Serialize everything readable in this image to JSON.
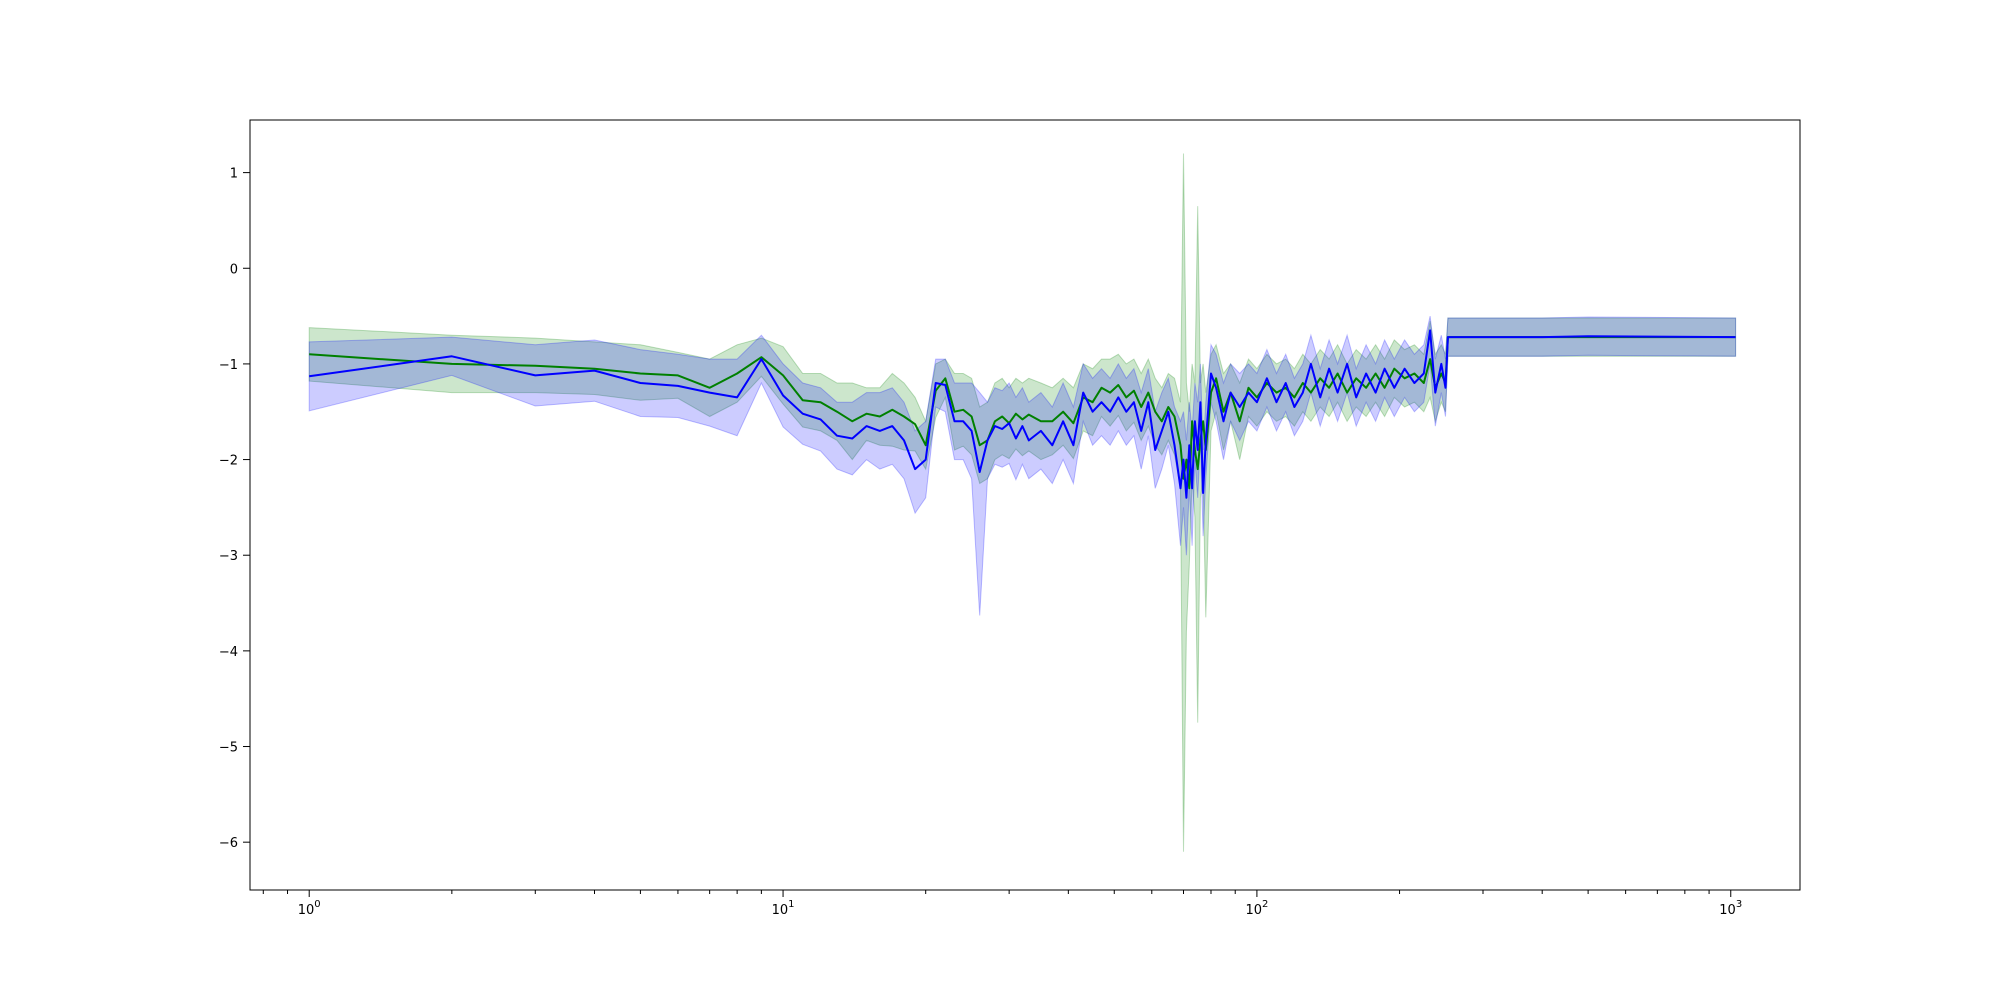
{
  "chart_data": {
    "type": "line",
    "title": "",
    "xlabel": "",
    "ylabel": "",
    "xscale": "log",
    "xlim": [
      0.75,
      1400
    ],
    "ylim": [
      -6.5,
      1.55
    ],
    "grid": false,
    "legend": "none",
    "x_ticks": [
      {
        "value": 1,
        "base": "10",
        "exp": "0"
      },
      {
        "value": 10,
        "base": "10",
        "exp": "1"
      },
      {
        "value": 100,
        "base": "10",
        "exp": "2"
      },
      {
        "value": 1000,
        "base": "10",
        "exp": "3"
      }
    ],
    "y_ticks": [
      {
        "value": 1,
        "label": "1"
      },
      {
        "value": 0,
        "label": "0"
      },
      {
        "value": -1,
        "label": "−1"
      },
      {
        "value": -2,
        "label": "−2"
      },
      {
        "value": -3,
        "label": "−3"
      },
      {
        "value": -4,
        "label": "−4"
      },
      {
        "value": -5,
        "label": "−5"
      },
      {
        "value": -6,
        "label": "−6"
      }
    ],
    "series": [
      {
        "color": "#008000",
        "band_color": "#008000",
        "band_opacity": 0.2,
        "points": [
          [
            1,
            -0.9,
            -0.62,
            -1.18
          ],
          [
            2,
            -1.0,
            -0.7,
            -1.3
          ],
          [
            3,
            -1.02,
            -0.73,
            -1.3
          ],
          [
            4,
            -1.05,
            -0.77,
            -1.32
          ],
          [
            5,
            -1.1,
            -0.8,
            -1.38
          ],
          [
            6,
            -1.12,
            -0.88,
            -1.36
          ],
          [
            7,
            -1.25,
            -0.95,
            -1.55
          ],
          [
            8,
            -1.1,
            -0.8,
            -1.4
          ],
          [
            9,
            -0.93,
            -0.73,
            -1.13
          ],
          [
            10,
            -1.12,
            -0.82,
            -1.42
          ],
          [
            11,
            -1.38,
            -1.1,
            -1.66
          ],
          [
            12,
            -1.4,
            -1.1,
            -1.7
          ],
          [
            13,
            -1.5,
            -1.2,
            -1.8
          ],
          [
            14,
            -1.6,
            -1.2,
            -2.0
          ],
          [
            15,
            -1.52,
            -1.25,
            -1.8
          ],
          [
            16,
            -1.55,
            -1.25,
            -1.85
          ],
          [
            17,
            -1.48,
            -1.1,
            -1.86
          ],
          [
            18,
            -1.55,
            -1.2,
            -1.9
          ],
          [
            19,
            -1.63,
            -1.35,
            -1.91
          ],
          [
            20,
            -1.85,
            -1.6,
            -2.1
          ],
          [
            21,
            -1.28,
            -1.0,
            -1.56
          ],
          [
            22,
            -1.15,
            -0.95,
            -1.35
          ],
          [
            23,
            -1.5,
            -1.1,
            -1.9
          ],
          [
            24,
            -1.48,
            -1.1,
            -1.86
          ],
          [
            25,
            -1.55,
            -1.15,
            -1.95
          ],
          [
            26,
            -1.85,
            -1.45,
            -2.25
          ],
          [
            27,
            -1.8,
            -1.4,
            -2.2
          ],
          [
            28,
            -1.6,
            -1.2,
            -2.0
          ],
          [
            29,
            -1.55,
            -1.15,
            -1.95
          ],
          [
            30,
            -1.62,
            -1.25,
            -1.99
          ],
          [
            31,
            -1.52,
            -1.15,
            -1.89
          ],
          [
            32,
            -1.58,
            -1.2,
            -1.96
          ],
          [
            33,
            -1.53,
            -1.15,
            -1.91
          ],
          [
            35,
            -1.6,
            -1.2,
            -2.0
          ],
          [
            37,
            -1.6,
            -1.25,
            -1.95
          ],
          [
            39,
            -1.5,
            -1.15,
            -1.85
          ],
          [
            41,
            -1.62,
            -1.25,
            -1.99
          ],
          [
            43,
            -1.35,
            -1.0,
            -1.7
          ],
          [
            45,
            -1.4,
            -1.05,
            -1.75
          ],
          [
            47,
            -1.25,
            -0.95,
            -1.55
          ],
          [
            49,
            -1.3,
            -0.95,
            -1.65
          ],
          [
            51,
            -1.22,
            -0.9,
            -1.54
          ],
          [
            53,
            -1.35,
            -1.0,
            -1.7
          ],
          [
            55,
            -1.28,
            -0.95,
            -1.61
          ],
          [
            57,
            -1.45,
            -1.1,
            -1.8
          ],
          [
            59,
            -1.3,
            -0.95,
            -1.65
          ],
          [
            61,
            -1.5,
            -1.15,
            -1.85
          ],
          [
            63,
            -1.6,
            -1.25,
            -1.95
          ],
          [
            65,
            -1.45,
            -1.1,
            -1.8
          ],
          [
            67,
            -1.55,
            -1.15,
            -1.95
          ],
          [
            69,
            -1.85,
            -1.4,
            -2.3
          ],
          [
            70,
            -2.2,
            1.2,
            -6.1
          ],
          [
            71,
            -2.0,
            -1.2,
            -3.8
          ],
          [
            72,
            -2.3,
            -1.5,
            -3.1
          ],
          [
            73,
            -1.6,
            -1.0,
            -2.2
          ],
          [
            74,
            -1.9,
            -1.2,
            -2.6
          ],
          [
            75,
            -2.1,
            0.65,
            -4.75
          ],
          [
            76,
            -1.8,
            -1.2,
            -2.4
          ],
          [
            77,
            -1.6,
            -1.0,
            -2.2
          ],
          [
            78,
            -1.9,
            -1.3,
            -3.65
          ],
          [
            80,
            -1.3,
            -0.9,
            -1.7
          ],
          [
            82,
            -1.15,
            -0.8,
            -1.5
          ],
          [
            85,
            -1.5,
            -1.1,
            -1.9
          ],
          [
            88,
            -1.3,
            -1.0,
            -1.6
          ],
          [
            92,
            -1.6,
            -1.2,
            -2.0
          ],
          [
            96,
            -1.25,
            -0.95,
            -1.55
          ],
          [
            100,
            -1.35,
            -1.05,
            -1.65
          ],
          [
            105,
            -1.2,
            -0.9,
            -1.5
          ],
          [
            110,
            -1.3,
            -1.0,
            -1.6
          ],
          [
            115,
            -1.25,
            -0.95,
            -1.55
          ],
          [
            120,
            -1.35,
            -1.05,
            -1.65
          ],
          [
            125,
            -1.2,
            -0.9,
            -1.5
          ],
          [
            130,
            -1.3,
            -1.0,
            -1.6
          ],
          [
            136,
            -1.15,
            -0.85,
            -1.45
          ],
          [
            142,
            -1.25,
            -0.95,
            -1.55
          ],
          [
            148,
            -1.1,
            -0.8,
            -1.4
          ],
          [
            155,
            -1.3,
            -1.0,
            -1.6
          ],
          [
            162,
            -1.15,
            -0.85,
            -1.45
          ],
          [
            170,
            -1.25,
            -0.95,
            -1.55
          ],
          [
            178,
            -1.1,
            -0.8,
            -1.4
          ],
          [
            186,
            -1.25,
            -0.95,
            -1.55
          ],
          [
            195,
            -1.05,
            -0.75,
            -1.35
          ],
          [
            205,
            -1.15,
            -0.85,
            -1.45
          ],
          [
            215,
            -1.1,
            -0.8,
            -1.4
          ],
          [
            225,
            -1.2,
            -0.9,
            -1.5
          ],
          [
            232,
            -0.95,
            -0.55,
            -1.35
          ],
          [
            238,
            -1.25,
            -0.9,
            -1.6
          ],
          [
            245,
            -1.1,
            -0.8,
            -1.4
          ],
          [
            250,
            -1.2,
            -0.9,
            -1.5
          ],
          [
            253,
            -0.72,
            -0.52,
            -0.92
          ],
          [
            400,
            -0.72,
            -0.52,
            -0.92
          ],
          [
            500,
            -0.72,
            -0.52,
            -0.92
          ],
          [
            1024,
            -0.72,
            -0.52,
            -0.92
          ]
        ]
      },
      {
        "color": "#0000ff",
        "band_color": "#0000ff",
        "band_opacity": 0.2,
        "points": [
          [
            1,
            -1.13,
            -0.77,
            -1.49
          ],
          [
            2,
            -0.92,
            -0.72,
            -1.12
          ],
          [
            3,
            -1.12,
            -0.8,
            -1.44
          ],
          [
            4,
            -1.07,
            -0.75,
            -1.39
          ],
          [
            5,
            -1.2,
            -0.85,
            -1.55
          ],
          [
            6,
            -1.23,
            -0.9,
            -1.56
          ],
          [
            7,
            -1.3,
            -0.95,
            -1.65
          ],
          [
            8,
            -1.35,
            -0.95,
            -1.75
          ],
          [
            9,
            -0.95,
            -0.7,
            -1.2
          ],
          [
            10,
            -1.33,
            -1.0,
            -1.66
          ],
          [
            11,
            -1.52,
            -1.2,
            -1.84
          ],
          [
            12,
            -1.58,
            -1.25,
            -1.91
          ],
          [
            13,
            -1.75,
            -1.4,
            -2.1
          ],
          [
            14,
            -1.78,
            -1.4,
            -2.16
          ],
          [
            15,
            -1.65,
            -1.3,
            -2.0
          ],
          [
            16,
            -1.7,
            -1.3,
            -2.1
          ],
          [
            17,
            -1.65,
            -1.25,
            -2.05
          ],
          [
            18,
            -1.8,
            -1.4,
            -2.2
          ],
          [
            19,
            -2.1,
            -1.7,
            -2.56
          ],
          [
            20,
            -2.0,
            -1.6,
            -2.4
          ],
          [
            21,
            -1.2,
            -0.95,
            -1.45
          ],
          [
            22,
            -1.22,
            -0.95,
            -1.5
          ],
          [
            23,
            -1.6,
            -1.2,
            -2.0
          ],
          [
            24,
            -1.6,
            -1.2,
            -2.0
          ],
          [
            25,
            -1.7,
            -1.2,
            -2.2
          ],
          [
            26,
            -2.13,
            -1.3,
            -3.63
          ],
          [
            27,
            -1.8,
            -1.4,
            -2.2
          ],
          [
            28,
            -1.65,
            -1.25,
            -2.05
          ],
          [
            29,
            -1.68,
            -1.28,
            -2.08
          ],
          [
            30,
            -1.62,
            -1.2,
            -2.04
          ],
          [
            31,
            -1.78,
            -1.35,
            -2.21
          ],
          [
            32,
            -1.65,
            -1.25,
            -2.05
          ],
          [
            33,
            -1.8,
            -1.4,
            -2.2
          ],
          [
            35,
            -1.7,
            -1.3,
            -2.1
          ],
          [
            37,
            -1.85,
            -1.45,
            -2.25
          ],
          [
            39,
            -1.6,
            -1.2,
            -2.0
          ],
          [
            41,
            -1.85,
            -1.45,
            -2.25
          ],
          [
            43,
            -1.3,
            -1.0,
            -1.6
          ],
          [
            45,
            -1.5,
            -1.15,
            -1.85
          ],
          [
            47,
            -1.4,
            -1.05,
            -1.75
          ],
          [
            49,
            -1.5,
            -1.15,
            -1.85
          ],
          [
            51,
            -1.35,
            -1.0,
            -1.7
          ],
          [
            53,
            -1.5,
            -1.15,
            -1.85
          ],
          [
            55,
            -1.4,
            -1.05,
            -1.75
          ],
          [
            57,
            -1.7,
            -1.3,
            -2.1
          ],
          [
            59,
            -1.4,
            -1.05,
            -1.75
          ],
          [
            61,
            -1.9,
            -1.5,
            -2.3
          ],
          [
            63,
            -1.7,
            -1.3,
            -2.1
          ],
          [
            65,
            -1.5,
            -1.15,
            -1.85
          ],
          [
            67,
            -1.85,
            -1.45,
            -2.25
          ],
          [
            69,
            -2.3,
            -1.6,
            -2.9
          ],
          [
            70,
            -2.0,
            -1.5,
            -2.5
          ],
          [
            71,
            -2.4,
            -1.8,
            -3.0
          ],
          [
            72,
            -1.85,
            -1.4,
            -2.3
          ],
          [
            73,
            -2.3,
            -1.7,
            -2.9
          ],
          [
            74,
            -1.6,
            -1.2,
            -2.0
          ],
          [
            75,
            -1.9,
            -1.4,
            -2.4
          ],
          [
            76,
            -1.4,
            -1.0,
            -1.8
          ],
          [
            77,
            -2.35,
            -1.9,
            -2.8
          ],
          [
            78,
            -1.8,
            -1.4,
            -2.2
          ],
          [
            80,
            -1.1,
            -0.8,
            -1.4
          ],
          [
            82,
            -1.25,
            -0.9,
            -1.6
          ],
          [
            85,
            -1.6,
            -1.2,
            -2.0
          ],
          [
            88,
            -1.3,
            -1.0,
            -1.6
          ],
          [
            92,
            -1.45,
            -1.1,
            -1.8
          ],
          [
            96,
            -1.3,
            -1.0,
            -1.6
          ],
          [
            100,
            -1.4,
            -1.1,
            -1.7
          ],
          [
            105,
            -1.15,
            -0.85,
            -1.45
          ],
          [
            110,
            -1.4,
            -1.1,
            -1.7
          ],
          [
            115,
            -1.2,
            -0.9,
            -1.5
          ],
          [
            120,
            -1.45,
            -1.15,
            -1.75
          ],
          [
            125,
            -1.3,
            -1.0,
            -1.6
          ],
          [
            130,
            -1.0,
            -0.7,
            -1.3
          ],
          [
            136,
            -1.35,
            -1.05,
            -1.65
          ],
          [
            142,
            -1.05,
            -0.75,
            -1.35
          ],
          [
            148,
            -1.3,
            -1.0,
            -1.6
          ],
          [
            155,
            -1.0,
            -0.7,
            -1.3
          ],
          [
            162,
            -1.35,
            -1.05,
            -1.65
          ],
          [
            170,
            -1.1,
            -0.8,
            -1.4
          ],
          [
            178,
            -1.3,
            -1.0,
            -1.6
          ],
          [
            186,
            -1.05,
            -0.75,
            -1.35
          ],
          [
            195,
            -1.25,
            -0.95,
            -1.55
          ],
          [
            205,
            -1.05,
            -0.75,
            -1.35
          ],
          [
            215,
            -1.2,
            -0.9,
            -1.5
          ],
          [
            225,
            -1.1,
            -0.8,
            -1.4
          ],
          [
            232,
            -0.65,
            -0.5,
            -1.0
          ],
          [
            238,
            -1.3,
            -0.95,
            -1.65
          ],
          [
            245,
            -1.0,
            -0.7,
            -1.3
          ],
          [
            250,
            -1.25,
            -0.95,
            -1.55
          ],
          [
            253,
            -0.72,
            -0.52,
            -0.92
          ],
          [
            400,
            -0.72,
            -0.52,
            -0.92
          ],
          [
            500,
            -0.71,
            -0.51,
            -0.91
          ],
          [
            1024,
            -0.72,
            -0.52,
            -0.92
          ]
        ]
      }
    ]
  }
}
